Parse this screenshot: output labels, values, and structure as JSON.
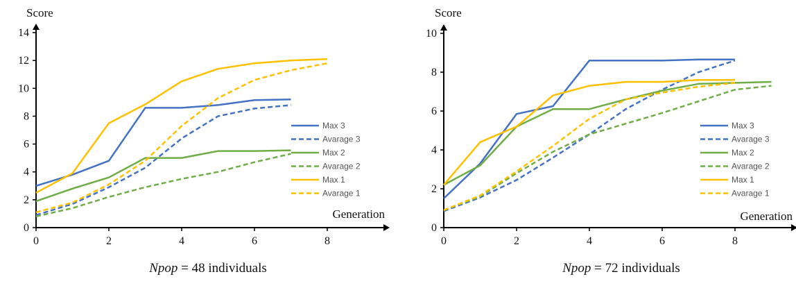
{
  "chart_data": [
    {
      "type": "line",
      "ylabel": "Score",
      "xlabel": "Generation",
      "caption_italic": "Npop",
      "caption_rest": " = 48 individuals",
      "xlim": [
        0,
        9.5
      ],
      "ylim": [
        0,
        14
      ],
      "xticks": [
        0,
        2,
        4,
        6,
        8
      ],
      "yticks": [
        0,
        2,
        4,
        6,
        8,
        10,
        12,
        14
      ],
      "legend_position": "right",
      "series": [
        {
          "name": "Max 3",
          "color": "#4472C4",
          "dash": "solid",
          "x": [
            0,
            1,
            2,
            3,
            4,
            5,
            6,
            7
          ],
          "y": [
            3.0,
            3.8,
            4.8,
            8.6,
            8.6,
            8.8,
            9.15,
            9.2
          ]
        },
        {
          "name": "Avarage 3",
          "color": "#4472C4",
          "dash": "dashed",
          "x": [
            0,
            1,
            2,
            3,
            4,
            5,
            6,
            7
          ],
          "y": [
            0.9,
            1.7,
            2.9,
            4.3,
            6.4,
            8.0,
            8.55,
            8.8
          ]
        },
        {
          "name": "Max 2",
          "color": "#70AD47",
          "dash": "solid",
          "x": [
            0,
            1,
            2,
            3,
            4,
            5,
            6,
            7
          ],
          "y": [
            1.9,
            2.8,
            3.6,
            5.0,
            5.0,
            5.5,
            5.5,
            5.55
          ]
        },
        {
          "name": "Avarage 2",
          "color": "#70AD47",
          "dash": "dashed",
          "x": [
            0,
            1,
            2,
            3,
            4,
            5,
            6,
            7
          ],
          "y": [
            0.8,
            1.4,
            2.2,
            2.9,
            3.5,
            4.0,
            4.7,
            5.3
          ]
        },
        {
          "name": "Max 1",
          "color": "#FFC000",
          "dash": "solid",
          "x": [
            0,
            1,
            2,
            3,
            4,
            5,
            6,
            7,
            8
          ],
          "y": [
            2.5,
            3.9,
            7.5,
            8.85,
            10.5,
            11.4,
            11.8,
            12.0,
            12.1
          ]
        },
        {
          "name": "Avarage 1",
          "color": "#FFC000",
          "dash": "dashed",
          "x": [
            0,
            1,
            2,
            3,
            4,
            5,
            6,
            7,
            8
          ],
          "y": [
            1.1,
            1.8,
            3.1,
            4.8,
            7.3,
            9.3,
            10.6,
            11.3,
            11.8
          ]
        }
      ]
    },
    {
      "type": "line",
      "ylabel": "Score",
      "xlabel": "Generation",
      "caption_italic": "Npop",
      "caption_rest": " = 72 individuals",
      "xlim": [
        0,
        9.5
      ],
      "ylim": [
        0,
        10
      ],
      "xticks": [
        0,
        2,
        4,
        6,
        8
      ],
      "yticks": [
        0,
        2,
        4,
        6,
        8,
        10
      ],
      "legend_position": "right",
      "series": [
        {
          "name": "Max 3",
          "color": "#4472C4",
          "dash": "solid",
          "x": [
            0,
            1,
            2,
            3,
            4,
            5,
            6,
            7,
            8
          ],
          "y": [
            1.5,
            3.3,
            5.85,
            6.25,
            8.6,
            8.6,
            8.6,
            8.65,
            8.65
          ]
        },
        {
          "name": "Avarage 3",
          "color": "#4472C4",
          "dash": "dashed",
          "x": [
            0,
            1,
            2,
            3,
            4,
            5,
            6,
            7,
            8
          ],
          "y": [
            0.85,
            1.55,
            2.45,
            3.6,
            4.8,
            6.1,
            7.1,
            8.0,
            8.6
          ]
        },
        {
          "name": "Max 2",
          "color": "#70AD47",
          "dash": "solid",
          "x": [
            0,
            1,
            2,
            3,
            4,
            5,
            6,
            7,
            8,
            9
          ],
          "y": [
            2.2,
            3.2,
            5.2,
            6.1,
            6.1,
            6.6,
            7.05,
            7.4,
            7.45,
            7.5
          ]
        },
        {
          "name": "Avarage 2",
          "color": "#70AD47",
          "dash": "dashed",
          "x": [
            0,
            1,
            2,
            3,
            4,
            5,
            6,
            7,
            8,
            9
          ],
          "y": [
            0.9,
            1.6,
            2.8,
            3.9,
            4.8,
            5.35,
            5.9,
            6.5,
            7.1,
            7.3
          ]
        },
        {
          "name": "Max 1",
          "color": "#FFC000",
          "dash": "solid",
          "x": [
            0,
            1,
            2,
            3,
            4,
            5,
            6,
            7,
            8
          ],
          "y": [
            2.2,
            4.4,
            5.2,
            6.8,
            7.3,
            7.5,
            7.5,
            7.6,
            7.6
          ]
        },
        {
          "name": "Avarage 1",
          "color": "#FFC000",
          "dash": "dashed",
          "x": [
            0,
            1,
            2,
            3,
            4,
            5,
            6,
            7,
            8
          ],
          "y": [
            0.9,
            1.65,
            2.9,
            4.2,
            5.6,
            6.6,
            6.95,
            7.25,
            7.45
          ]
        }
      ]
    }
  ]
}
